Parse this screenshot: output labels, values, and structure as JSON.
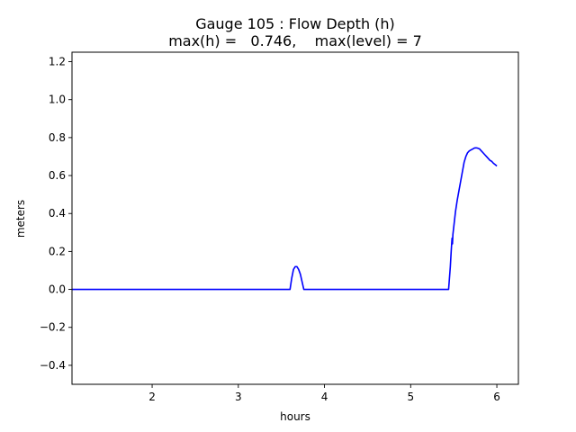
{
  "chart_data": {
    "type": "line",
    "title": "Gauge 105 : Flow Depth (h)",
    "subtitle": "max(h) =   0.746,    max(level) = 7",
    "xlabel": "hours",
    "ylabel": "meters",
    "xlim": [
      1.07,
      6.25
    ],
    "ylim": [
      -0.5,
      1.25
    ],
    "xticks": [
      2,
      3,
      4,
      5,
      6
    ],
    "yticks": [
      -0.4,
      -0.2,
      0.0,
      0.2,
      0.4,
      0.6,
      0.8,
      1.0,
      1.2
    ],
    "xtick_labels": [
      "2",
      "3",
      "4",
      "5",
      "6"
    ],
    "ytick_labels": [
      "−0.4",
      "−0.2",
      "0.0",
      "0.2",
      "0.4",
      "0.6",
      "0.8",
      "1.0",
      "1.2"
    ],
    "grid": false,
    "series": [
      {
        "color": "#0000ff",
        "x": [
          1.07,
          3.6,
          3.62,
          3.64,
          3.66,
          3.68,
          3.7,
          3.72,
          3.74,
          3.76,
          3.78,
          3.8,
          5.44,
          5.46,
          5.47,
          5.48,
          5.485,
          5.49,
          5.5,
          5.52,
          5.54,
          5.56,
          5.58,
          5.6,
          5.62,
          5.64,
          5.66,
          5.68,
          5.7,
          5.72,
          5.74,
          5.76,
          5.78,
          5.8,
          5.82,
          5.84,
          5.86,
          5.88,
          5.9,
          5.92,
          5.94,
          5.96,
          5.98,
          6.0
        ],
        "y": [
          0.0,
          0.0,
          0.06,
          0.105,
          0.12,
          0.12,
          0.105,
          0.08,
          0.04,
          0.0,
          0.0,
          0.0,
          0.0,
          0.12,
          0.2,
          0.27,
          0.24,
          0.29,
          0.33,
          0.41,
          0.47,
          0.52,
          0.57,
          0.62,
          0.67,
          0.7,
          0.72,
          0.73,
          0.735,
          0.74,
          0.745,
          0.746,
          0.744,
          0.74,
          0.73,
          0.72,
          0.71,
          0.7,
          0.69,
          0.68,
          0.675,
          0.665,
          0.658,
          0.65
        ]
      }
    ]
  }
}
